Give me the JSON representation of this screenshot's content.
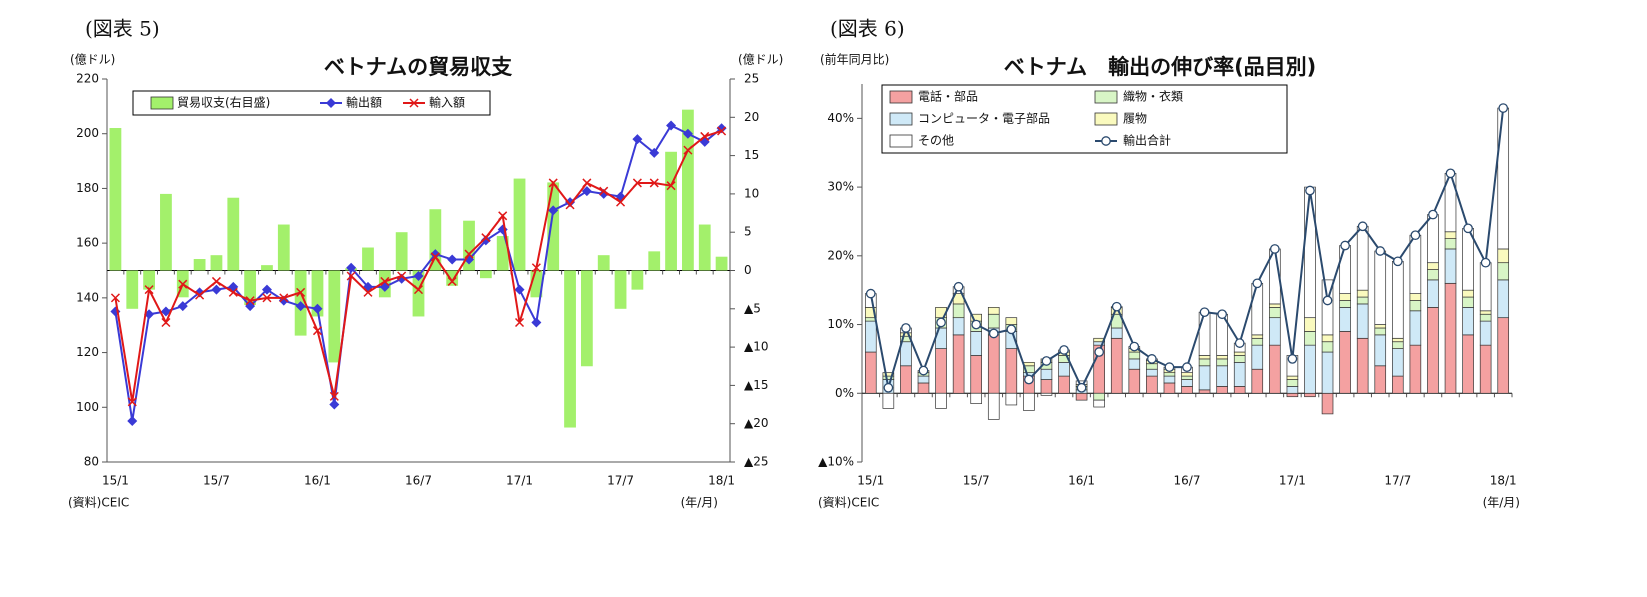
{
  "chart_data": [
    {
      "type": "combo",
      "figure_label": "(図表 5)",
      "title": "ベトナムの貿易収支",
      "y_unit": "(億ドル)",
      "y2_unit": "(億ドル)",
      "source": "(資料)CEIC",
      "x_unit": "(年/月)",
      "categories": [
        "15/1",
        null,
        null,
        null,
        null,
        null,
        "15/7",
        null,
        null,
        null,
        null,
        null,
        "16/1",
        null,
        null,
        null,
        null,
        null,
        "16/7",
        null,
        null,
        null,
        null,
        null,
        "17/1",
        null,
        null,
        null,
        null,
        null,
        "17/7",
        null,
        null,
        null,
        null,
        null,
        "18/1"
      ],
      "ylim": [
        80,
        220
      ],
      "yticks": [
        80,
        100,
        120,
        140,
        160,
        180,
        200,
        220
      ],
      "y2lim": [
        -25,
        25
      ],
      "y2ticks": [
        25,
        20,
        15,
        10,
        5,
        0,
        {
          "value": -5,
          "label": "▲5"
        },
        {
          "value": -10,
          "label": "▲10"
        },
        {
          "value": -15,
          "label": "▲15"
        },
        {
          "value": -20,
          "label": "▲20"
        },
        {
          "value": -25,
          "label": "▲25"
        }
      ],
      "series": [
        {
          "name": "貿易収支(右目盛)",
          "type": "bar",
          "axis": "y2",
          "color": "#a3f06b",
          "values": [
            18.6,
            -5,
            -2.5,
            10,
            -3.5,
            1.5,
            2,
            9.5,
            -4.5,
            0.7,
            6,
            -8.5,
            -6,
            -12,
            0.3,
            3,
            -3.5,
            5,
            -6,
            8,
            -2,
            6.5,
            -1,
            4.5,
            12,
            -3.5,
            11.5,
            -20.5,
            -12.5,
            2,
            -5,
            -2.5,
            2.5,
            15.5,
            21,
            6,
            1.8
          ]
        },
        {
          "name": "輸出額",
          "type": "line",
          "marker": "diamond",
          "color": "#3a3ad6",
          "values": [
            135,
            95,
            134,
            135,
            137,
            142,
            143,
            144,
            137,
            143,
            139,
            137,
            136,
            101,
            151,
            144,
            144,
            147,
            148,
            156,
            154,
            154,
            161,
            165,
            143,
            131,
            172,
            175,
            179,
            178,
            177,
            198,
            193,
            203,
            200,
            197,
            202
          ]
        },
        {
          "name": "輸入額",
          "type": "line",
          "marker": "x",
          "color": "#e01818",
          "values": [
            140,
            102,
            143,
            131,
            145,
            141,
            146,
            142,
            139,
            140,
            140,
            142,
            128,
            104,
            148,
            142,
            146,
            148,
            143,
            155,
            146,
            156,
            162,
            170,
            131,
            151,
            182,
            174,
            182,
            179,
            175,
            182,
            182,
            181,
            194,
            199,
            201
          ]
        }
      ]
    },
    {
      "type": "stacked_bar",
      "figure_label": "(図表 6)",
      "title": "ベトナム　輸出の伸び率(品目別)",
      "y_unit": "(前年同月比)",
      "source": "(資料)CEIC",
      "x_unit": "(年/月)",
      "categories": [
        "15/1",
        null,
        null,
        null,
        null,
        null,
        "15/7",
        null,
        null,
        null,
        null,
        null,
        "16/1",
        null,
        null,
        null,
        null,
        null,
        "16/7",
        null,
        null,
        null,
        null,
        null,
        "17/1",
        null,
        null,
        null,
        null,
        null,
        "17/7",
        null,
        null,
        null,
        null,
        null,
        "18/1"
      ],
      "ylim": [
        -10,
        45
      ],
      "yticks": [
        {
          "value": -10,
          "label": "▲10%"
        },
        {
          "value": 0,
          "label": "0%"
        },
        {
          "value": 10,
          "label": "10%"
        },
        {
          "value": 20,
          "label": "20%"
        },
        {
          "value": 30,
          "label": "30%"
        },
        {
          "value": 40,
          "label": "40%"
        }
      ],
      "series": [
        {
          "name": "電話・部品",
          "type": "bar",
          "color": "#f4a1a1",
          "values": [
            6,
            0,
            4,
            1.5,
            6.5,
            8.5,
            5.5,
            8.5,
            6.5,
            2.5,
            2,
            2.5,
            -1,
            7,
            8,
            3.5,
            2.5,
            1.5,
            1,
            0.5,
            1,
            1,
            3.5,
            7,
            -0.5,
            -0.5,
            -3,
            9,
            8,
            4,
            2.5,
            7,
            12.5,
            16,
            8.5,
            7,
            11
          ]
        },
        {
          "name": "コンピュータ・電子部品",
          "type": "bar",
          "color": "#cfe9f7",
          "values": [
            4.5,
            2,
            3.5,
            1,
            3,
            2.5,
            3.5,
            1,
            2.5,
            0.5,
            1.5,
            2,
            0.5,
            0.5,
            1.5,
            1.5,
            1,
            1,
            1,
            3.5,
            3,
            3.5,
            3.5,
            4,
            1,
            7,
            6,
            3.5,
            5,
            4.5,
            4,
            5,
            4,
            5,
            4,
            3.5,
            5.5
          ]
        },
        {
          "name": "織物・衣類",
          "type": "bar",
          "color": "#d8f5c6",
          "values": [
            0.5,
            0.5,
            0.8,
            0.5,
            1.5,
            2,
            1.5,
            2,
            1,
            1,
            1,
            1,
            0.5,
            -1,
            2,
            1,
            0.8,
            0.5,
            0.5,
            1,
            1,
            1,
            1,
            1.5,
            1,
            2,
            1.5,
            1,
            1,
            1,
            1,
            1.5,
            1.5,
            1.5,
            1.5,
            1,
            2.5
          ]
        },
        {
          "name": "履物",
          "type": "bar",
          "color": "#fafabe",
          "values": [
            1.5,
            0.5,
            0.5,
            0.3,
            1.5,
            1.5,
            1,
            1,
            1,
            0.5,
            0.5,
            0.5,
            0.3,
            0.5,
            1,
            0.5,
            0.5,
            0.5,
            0.5,
            0.5,
            0.5,
            0.5,
            0.5,
            0.5,
            0.5,
            2,
            1,
            1,
            1,
            0.5,
            0.5,
            1,
            1,
            1,
            1,
            0.5,
            2
          ]
        },
        {
          "name": "その他",
          "type": "bar",
          "color": "#ffffff",
          "values": [
            2,
            -2.2,
            0.7,
            0,
            -2.2,
            1,
            -1.5,
            -3.8,
            -1.7,
            -2.5,
            -0.3,
            0.3,
            0.5,
            -1,
            0.1,
            0.3,
            0.2,
            0.3,
            0.8,
            6.3,
            6,
            1.3,
            7.5,
            8,
            3,
            19,
            8,
            7,
            9.3,
            10.7,
            11.2,
            8.5,
            7,
            8.5,
            9,
            7,
            20.5
          ]
        },
        {
          "name": "輸出合計",
          "type": "line",
          "marker": "circle",
          "color": "#2b4a6e",
          "values": [
            14.5,
            0.8,
            9.5,
            3.3,
            10.3,
            15.5,
            10,
            8.7,
            9.3,
            2,
            4.7,
            6.3,
            0.8,
            6,
            12.6,
            6.8,
            5,
            3.8,
            3.8,
            11.8,
            11.5,
            7.3,
            16,
            21,
            5,
            29.5,
            13.5,
            21.5,
            24.3,
            20.7,
            19.2,
            23,
            26,
            32,
            24,
            19,
            41.5
          ]
        }
      ]
    }
  ]
}
